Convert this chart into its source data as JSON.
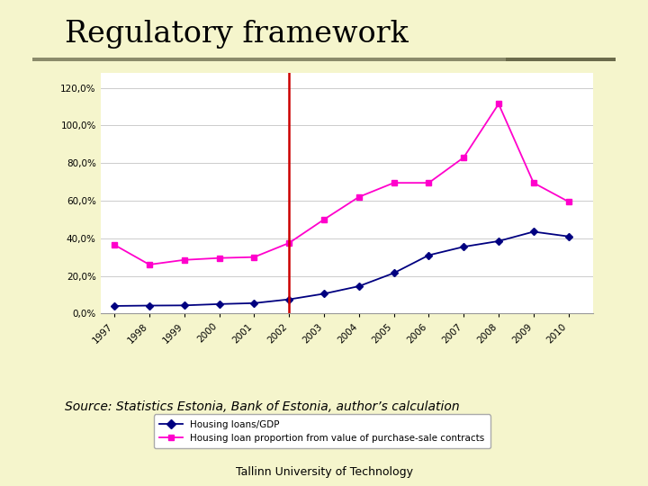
{
  "title": "Regulatory framework",
  "source_text": "Source: Statistics Estonia, Bank of Estonia, author’s calculation",
  "footer_text": "Tallinn University of Technology",
  "background_color": "#f5f5cc",
  "chart_bg": "#ffffff",
  "years_loan": [
    1997,
    1998,
    1999,
    2000,
    2001,
    2002,
    2003,
    2004,
    2005,
    2006,
    2007,
    2008,
    2009,
    2010
  ],
  "housing_loans_gdp": [
    0.04,
    0.042,
    0.043,
    0.05,
    0.055,
    0.075,
    0.105,
    0.145,
    0.215,
    0.31,
    0.355,
    0.385,
    0.435,
    0.41
  ],
  "years_prop": [
    1997,
    1998,
    1999,
    2000,
    2001,
    2002,
    2003,
    2004,
    2005,
    2006,
    2007,
    2008,
    2009,
    2010
  ],
  "housing_loan_proportion": [
    0.365,
    0.26,
    0.285,
    0.295,
    0.3,
    0.375,
    0.5,
    0.62,
    0.695,
    0.695,
    0.83,
    1.115,
    0.695,
    0.595
  ],
  "vline_x": 2002,
  "vline_color": "#cc0000",
  "loan_color": "#000080",
  "proportion_color": "#ff00cc",
  "yticks": [
    0.0,
    0.2,
    0.4,
    0.6,
    0.8,
    1.0,
    1.2
  ],
  "ytick_labels": [
    "0,0%",
    "20,0%",
    "40,0%",
    "60,0%",
    "80,0%",
    "100,0%",
    "120,0%"
  ],
  "legend_loan": "Housing loans/GDP",
  "legend_proportion": "Housing loan proportion from value of purchase-sale contracts",
  "title_fontsize": 24,
  "source_fontsize": 10,
  "footer_fontsize": 9
}
